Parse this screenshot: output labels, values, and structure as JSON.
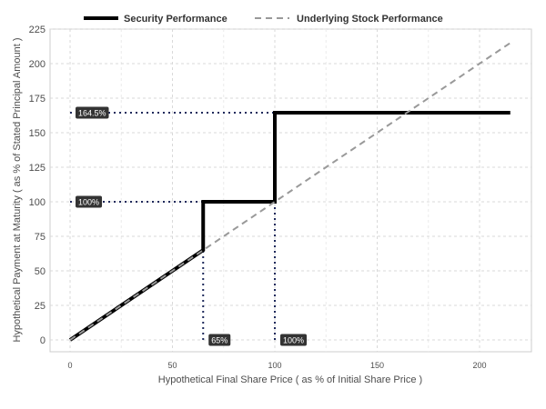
{
  "chart_data": {
    "type": "line",
    "xlabel": "Hypothetical Final Share Price ( as % of Initial Share Price )",
    "ylabel": "Hypothetical Payment at Maturity ( as % of Stated Principal Amount )",
    "xlim": [
      -5,
      225
    ],
    "ylim": [
      -10,
      225
    ],
    "x_ticks": [
      0,
      50,
      100,
      150,
      200
    ],
    "y_ticks": [
      0,
      25,
      50,
      75,
      100,
      125,
      150,
      175,
      200,
      225
    ],
    "grid": true,
    "legend_position": "top",
    "series": [
      {
        "name": "Security Performance",
        "style": "solid",
        "color": "#000000",
        "x": [
          0,
          65,
          65,
          100,
          100,
          215
        ],
        "y": [
          0,
          65,
          100,
          100,
          164.5,
          164.5
        ]
      },
      {
        "name": "Underlying Stock Performance",
        "style": "dashed",
        "color": "#999999",
        "x": [
          0,
          215
        ],
        "y": [
          0,
          215
        ]
      }
    ],
    "annotations": [
      {
        "label": "164.5%",
        "axis": "y",
        "value": 164.5,
        "from_x": 0,
        "to_x": 100
      },
      {
        "label": "100%",
        "axis": "y",
        "value": 100,
        "from_x": 0,
        "to_x": 65
      },
      {
        "label": "65%",
        "axis": "x",
        "value": 65,
        "from_y": 0,
        "to_y": 65
      },
      {
        "label": "100%",
        "axis": "x",
        "value": 100,
        "from_y": 0,
        "to_y": 100
      }
    ],
    "colors": {
      "guide": "#1f2a5c",
      "label_bg": "#333333",
      "grid": "#dddddd"
    }
  }
}
